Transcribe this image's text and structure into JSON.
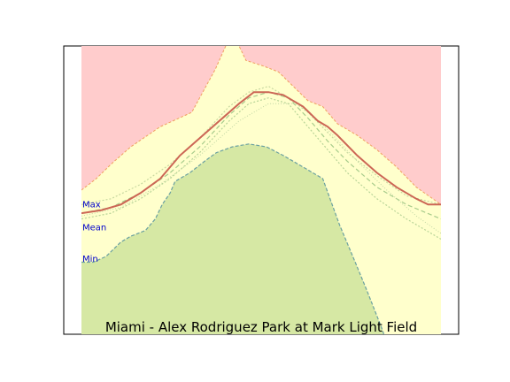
{
  "chart_data": {
    "type": "area",
    "title": "Miami - Alex Rodriguez Park at Mark Light Field",
    "xlim": [
      0,
      365
    ],
    "ylim": [
      0,
      1
    ],
    "x_axis_ticks": [],
    "y_axis_ticks": [],
    "grid": false,
    "legend": "none",
    "labels": [
      {
        "key": "max",
        "text": "Max",
        "y": 0.45
      },
      {
        "key": "mean",
        "text": "Mean",
        "y": 0.37
      },
      {
        "key": "min",
        "text": "Min",
        "y": 0.26
      }
    ],
    "colors": {
      "upper_fill": "#ffcccc",
      "middle_fill": "#ffffcc",
      "lower_fill": "#d6e8a4",
      "record_max_line": "#f0a060",
      "record_min_line": "#6aa0a0",
      "mean_line": "#cc6655",
      "label_text": "#0000cc"
    },
    "series": {
      "record_max": {
        "x": [
          0,
          15,
          30,
          50,
          80,
          112,
          136,
          153,
          167,
          185,
          200,
          215,
          230,
          245,
          260,
          280,
          300,
          320,
          340,
          365
        ],
        "y": [
          0.5,
          0.54,
          0.59,
          0.65,
          0.72,
          0.77,
          0.92,
          1.05,
          0.95,
          0.93,
          0.91,
          0.86,
          0.81,
          0.79,
          0.73,
          0.69,
          0.64,
          0.58,
          0.51,
          0.45
        ]
      },
      "mean": {
        "x": [
          0,
          20,
          40,
          60,
          80,
          100,
          120,
          140,
          160,
          175,
          190,
          205,
          225,
          240,
          250,
          260,
          280,
          300,
          320,
          340,
          352,
          365
        ],
        "y": [
          0.42,
          0.43,
          0.45,
          0.49,
          0.54,
          0.62,
          0.68,
          0.74,
          0.8,
          0.84,
          0.84,
          0.83,
          0.79,
          0.74,
          0.72,
          0.69,
          0.62,
          0.56,
          0.51,
          0.47,
          0.45,
          0.45
        ]
      },
      "normal_max": {
        "x": [
          0,
          30,
          60,
          90,
          120,
          150,
          170,
          190,
          210,
          230,
          250,
          270,
          300,
          330,
          365
        ],
        "y": [
          0.45,
          0.47,
          0.52,
          0.59,
          0.68,
          0.79,
          0.84,
          0.86,
          0.82,
          0.77,
          0.7,
          0.63,
          0.55,
          0.48,
          0.45
        ]
      },
      "normal_mid": {
        "x": [
          0,
          30,
          60,
          90,
          120,
          150,
          170,
          190,
          210,
          230,
          250,
          270,
          300,
          330,
          365
        ],
        "y": [
          0.42,
          0.44,
          0.49,
          0.56,
          0.65,
          0.76,
          0.82,
          0.84,
          0.82,
          0.75,
          0.67,
          0.6,
          0.51,
          0.45,
          0.4
        ]
      },
      "normal_min": {
        "x": [
          0,
          30,
          60,
          90,
          120,
          150,
          170,
          190,
          210,
          230,
          250,
          270,
          300,
          330,
          365
        ],
        "y": [
          0.4,
          0.42,
          0.47,
          0.54,
          0.63,
          0.74,
          0.8,
          0.82,
          0.8,
          0.72,
          0.64,
          0.56,
          0.47,
          0.4,
          0.33
        ]
      },
      "normal_low": {
        "x": [
          0,
          40,
          80,
          120,
          160,
          190,
          220,
          250,
          280,
          310,
          340,
          365
        ],
        "y": [
          0.41,
          0.44,
          0.52,
          0.62,
          0.74,
          0.8,
          0.8,
          0.71,
          0.6,
          0.5,
          0.41,
          0.35
        ]
      },
      "record_min": {
        "x": [
          0,
          12,
          25,
          40,
          50,
          65,
          75,
          82,
          90,
          95,
          110,
          125,
          137,
          153,
          170,
          188,
          205,
          225,
          245,
          262,
          278,
          290,
          305,
          312,
          365
        ],
        "y": [
          0.25,
          0.25,
          0.27,
          0.32,
          0.34,
          0.36,
          0.4,
          0.45,
          0.49,
          0.53,
          0.56,
          0.6,
          0.63,
          0.65,
          0.66,
          0.65,
          0.62,
          0.58,
          0.54,
          0.38,
          0.25,
          0.15,
          0.02,
          -0.05,
          -0.05
        ]
      }
    }
  }
}
